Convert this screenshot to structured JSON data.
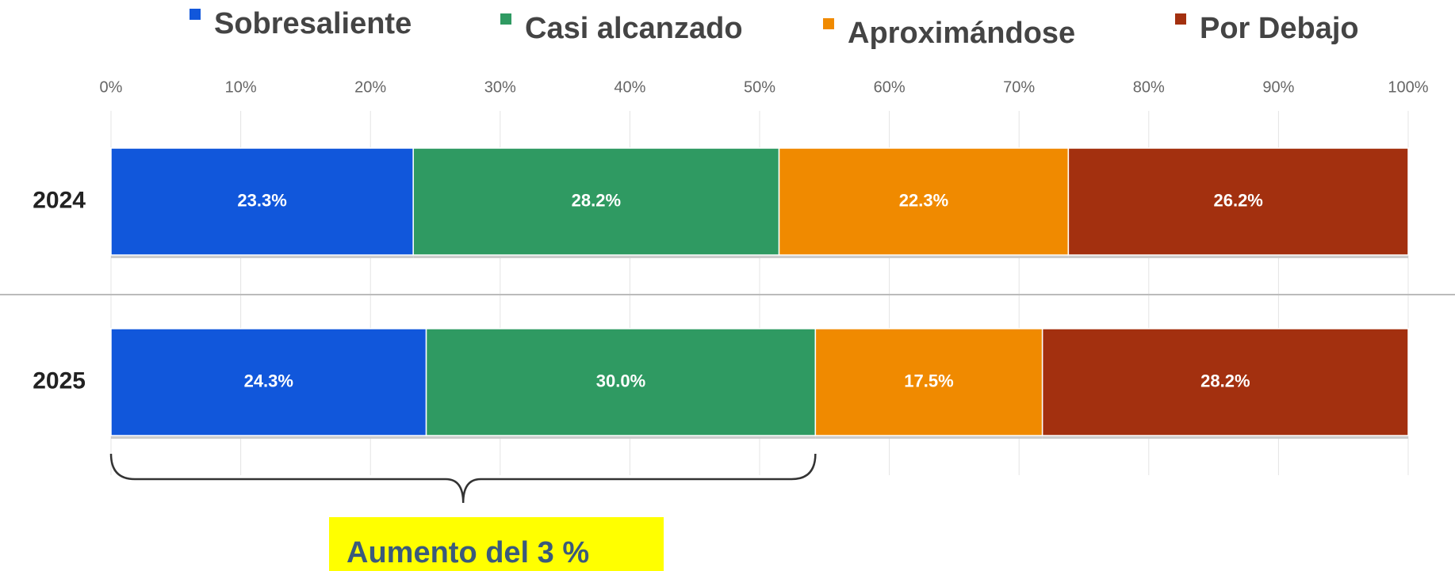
{
  "chart_data": {
    "type": "bar",
    "orientation": "horizontal",
    "stacked": true,
    "categories": [
      "2024",
      "2025"
    ],
    "series": [
      {
        "name": "Sobresaliente",
        "color": "#1157db",
        "values": [
          23.3,
          24.3
        ],
        "value_labels": [
          "23.3%",
          "24.3%"
        ]
      },
      {
        "name": "Casi alcanzado",
        "color": "#2f9a62",
        "values": [
          28.2,
          30.0
        ],
        "value_labels": [
          "28.2%",
          "30.0%"
        ]
      },
      {
        "name": "Aproximándose",
        "color": "#f08a00",
        "values": [
          22.3,
          17.5
        ],
        "value_labels": [
          "22.3%",
          "17.5%"
        ]
      },
      {
        "name": "Por Debajo",
        "color": "#a3300f",
        "values": [
          26.2,
          28.2
        ],
        "value_labels": [
          "26.2%",
          "28.2%"
        ]
      }
    ],
    "xlim": [
      0,
      100
    ],
    "xticks": [
      {
        "value": 0,
        "label": "0%"
      },
      {
        "value": 10,
        "label": "10%"
      },
      {
        "value": 20,
        "label": "20%"
      },
      {
        "value": 30,
        "label": "30%"
      },
      {
        "value": 40,
        "label": "40%"
      },
      {
        "value": 50,
        "label": "50%"
      },
      {
        "value": 60,
        "label": "60%"
      },
      {
        "value": 70,
        "label": "70%"
      },
      {
        "value": 80,
        "label": "80%"
      },
      {
        "value": 90,
        "label": "90%"
      },
      {
        "value": 100,
        "label": "100%"
      }
    ],
    "grid": true,
    "legend": "top",
    "annotation": "Aumento del 3 %"
  }
}
